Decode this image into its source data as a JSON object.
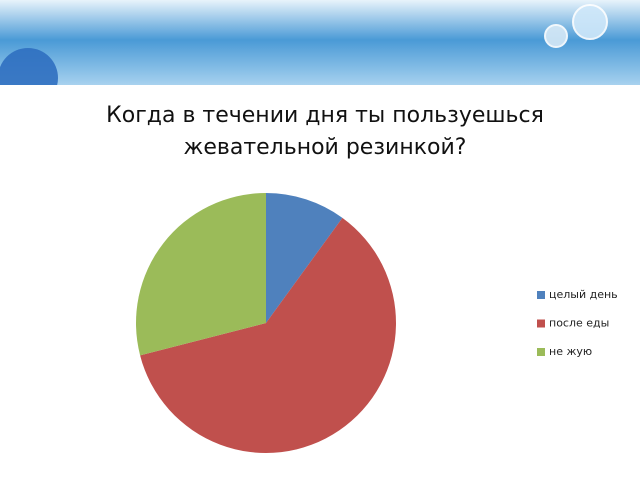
{
  "chart_data": {
    "type": "pie",
    "title": "Когда в течении дня ты пользуешься жевательной резинкой?",
    "categories": [
      "целый день",
      "после еды",
      "не жую"
    ],
    "values": [
      10,
      61,
      29
    ],
    "colors": [
      "#4f81bd",
      "#c0504d",
      "#9bbb59"
    ],
    "legend": "right"
  }
}
